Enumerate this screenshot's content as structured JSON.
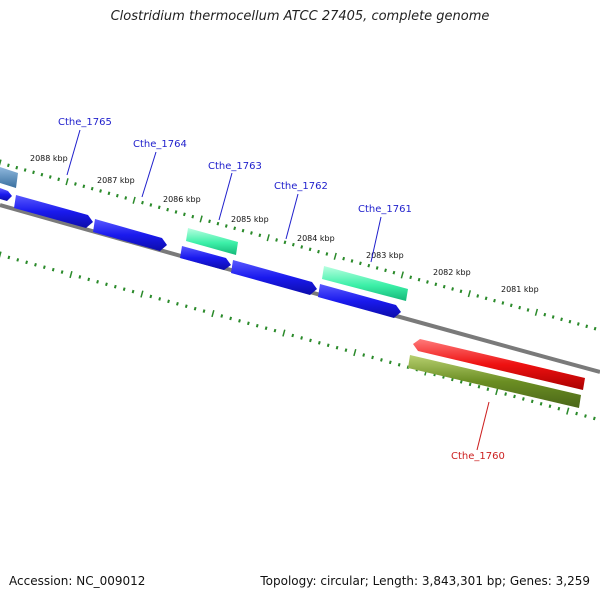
{
  "title": "Clostridium thermocellum ATCC 27405, complete genome",
  "footer": {
    "accession": "Accession: NC_009012",
    "summary": "Topology: circular; Length: 3,843,301 bp; Genes: 3,259"
  },
  "kbp_labels": [
    "2088 kbp",
    "2087 kbp",
    "2086 kbp",
    "2085 kbp",
    "2084 kbp",
    "2083 kbp",
    "2082 kbp",
    "2081 kbp"
  ],
  "gene_labels": [
    {
      "id": "g1765",
      "text": "Cthe_1765",
      "color": "#1f1fcc"
    },
    {
      "id": "g1764",
      "text": "Cthe_1764",
      "color": "#1f1fcc"
    },
    {
      "id": "g1763",
      "text": "Cthe_1763",
      "color": "#1f1fcc"
    },
    {
      "id": "g1762",
      "text": "Cthe_1762",
      "color": "#1f1fcc"
    },
    {
      "id": "g1761",
      "text": "Cthe_1761",
      "color": "#1f1fcc"
    },
    {
      "id": "g1760",
      "text": "Cthe_1760",
      "color": "#cc1f1f"
    }
  ],
  "colors": {
    "forward_cds": "#1a1aee",
    "rna_feature": "#2ee8a0",
    "reverse_cds": "#ee1111",
    "reverse_gene": "#6b8e23",
    "steel_blue": "#4682b4",
    "backbone": "#808080",
    "tick": "#2a8a2a"
  }
}
